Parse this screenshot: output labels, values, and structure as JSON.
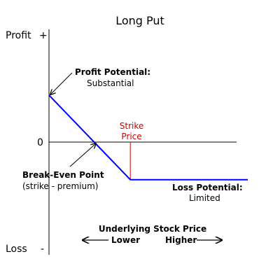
{
  "chart_data": {
    "type": "line",
    "title": "Long Put",
    "y_axis": {
      "top_label": "Profit",
      "top_sign": "+",
      "bottom_label": "Loss",
      "bottom_sign": "-",
      "zero_label": "0"
    },
    "x_axis": {
      "label": "Underlying Stock Price",
      "left_label": "Lower",
      "right_label": "Higher"
    },
    "series": [
      {
        "color": "#0000ff",
        "points": [
          {
            "x": 0,
            "y": 1.0
          },
          {
            "x": 0.5,
            "y": 0
          },
          {
            "x": 0.9,
            "y": -0.8
          },
          {
            "x": 2.2,
            "y": -0.8
          }
        ]
      }
    ],
    "strike": {
      "x": 0.9,
      "label_line1": "Strike",
      "label_line2": "Price",
      "color": "#cc0000"
    },
    "annotations": {
      "profit": {
        "line1": "Profit Potential:",
        "line2": "Substantial"
      },
      "breakeven": {
        "line1": "Break-Even Point",
        "line2": "(strike - premium)"
      },
      "loss": {
        "line1": "Loss Potential:",
        "line2": "Limited"
      }
    },
    "xlim": [
      0,
      2.2
    ],
    "ylim": [
      -2.4,
      2.4
    ]
  }
}
